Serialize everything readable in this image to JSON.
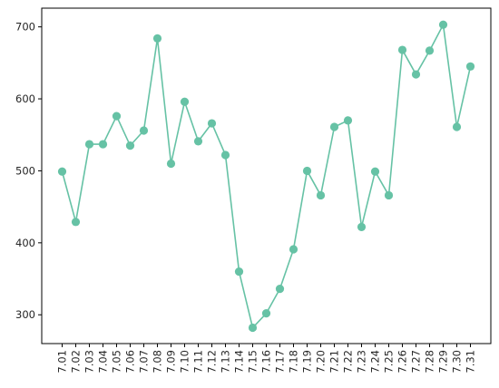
{
  "chart_data": {
    "type": "line",
    "title": "",
    "xlabel": "",
    "ylabel": "",
    "categories": [
      "7.01",
      "7.02",
      "7.03",
      "7.04",
      "7.05",
      "7.06",
      "7.07",
      "7.08",
      "7.09",
      "7.10",
      "7.11",
      "7.12",
      "7.13",
      "7.14",
      "7.15",
      "7.16",
      "7.17",
      "7.18",
      "7.19",
      "7.20",
      "7.21",
      "7.22",
      "7.23",
      "7.24",
      "7.25",
      "7.26",
      "7.27",
      "7.28",
      "7.29",
      "7.30",
      "7.31"
    ],
    "series": [
      {
        "values": [
          499,
          429,
          537,
          537,
          576,
          535,
          556,
          684,
          510,
          596,
          541,
          566,
          522,
          360,
          282,
          302,
          336,
          391,
          500,
          466,
          561,
          570,
          422,
          499,
          466,
          668,
          634,
          667,
          703,
          561,
          645
        ],
        "color": "#66c2a5"
      }
    ],
    "ylim": [
      260,
      726
    ],
    "yticks": [
      300,
      400,
      500,
      600,
      700
    ],
    "grid": false,
    "legend": "none"
  }
}
